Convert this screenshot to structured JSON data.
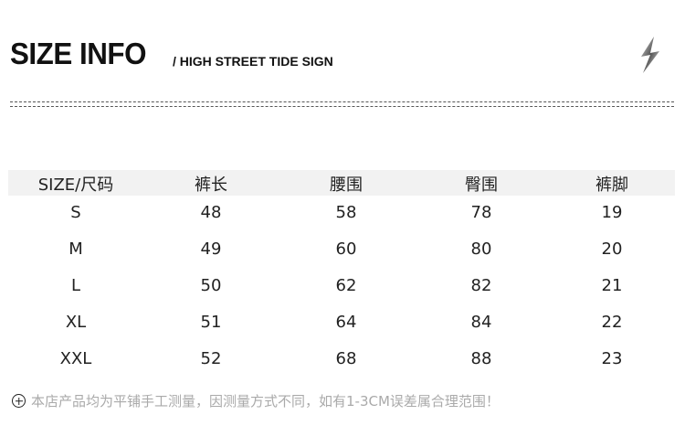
{
  "header": {
    "title": "SIZE INFO",
    "subtitle": "/ HIGH STREET TIDE SIGN",
    "icon": "lightning-icon"
  },
  "table": {
    "columns": [
      "SIZE/尺码",
      "裤长",
      "腰围",
      "臀围",
      "裤脚"
    ],
    "rows": [
      [
        "S",
        "48",
        "58",
        "78",
        "19"
      ],
      [
        "M",
        "49",
        "60",
        "80",
        "20"
      ],
      [
        "L",
        "50",
        "62",
        "82",
        "21"
      ],
      [
        "XL",
        "51",
        "64",
        "84",
        "22"
      ],
      [
        "XXL",
        "52",
        "68",
        "88",
        "23"
      ]
    ]
  },
  "note": {
    "icon": "plus-circle-icon",
    "text": "本店产品均为平铺手工测量，因测量方式不同，如有1-3CM误差属合理范围！"
  }
}
